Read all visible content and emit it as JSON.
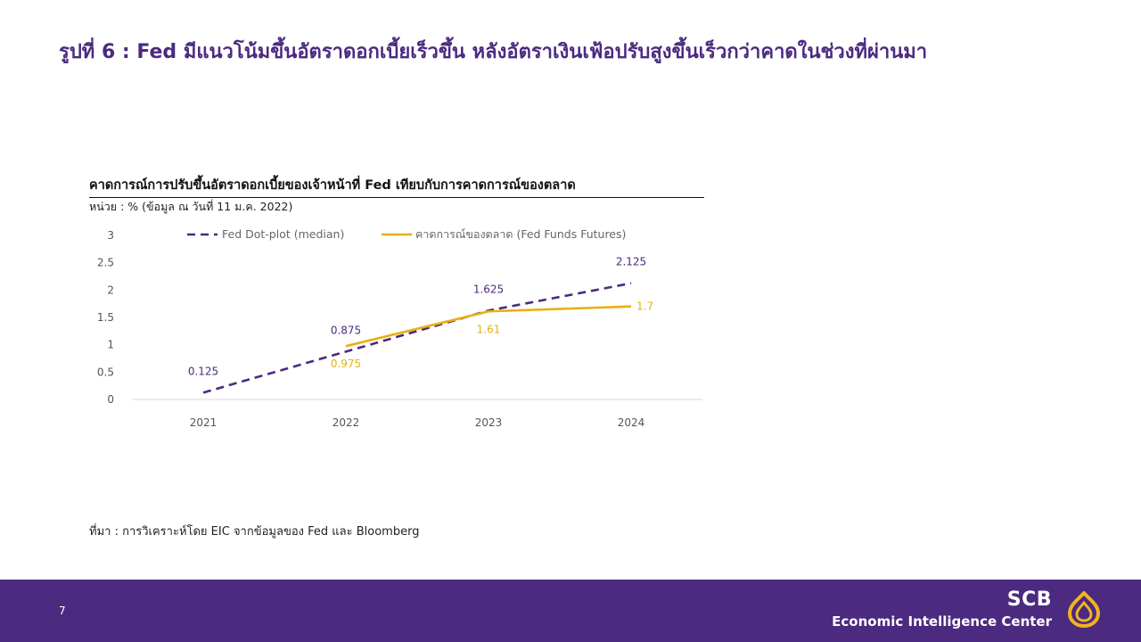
{
  "slide": {
    "title": "รูปที่ 6 : Fed มีแนวโน้มขึ้นอัตราดอกเบี้ยเร็วขึ้น หลังอัตราเงินเฟ้อปรับสูงขึ้นเร็วกว่าคาดในช่วงที่ผ่านมา",
    "source": "ที่มา : การวิเคราะห์โดย EIC จากข้อมูลของ Fed และ Bloomberg",
    "page_number": "7"
  },
  "brand": {
    "name": "SCB",
    "subtitle": "Economic Intelligence Center",
    "logo_icon": "scb-bell-logo-icon",
    "primary_color": "#4b2a80",
    "accent_color": "#f2b41c"
  },
  "chart_data": {
    "type": "line",
    "title": "คาดการณ์การปรับขึ้นอัตราดอกเบี้ยของเจ้าหน้าที่ Fed เทียบกับการคาดการณ์ของตลาด",
    "unit_note": "หน่วย : % (ข้อมูล ณ วันที่ 11 ม.ค. 2022)",
    "categories": [
      "2021",
      "2022",
      "2023",
      "2024"
    ],
    "y_ticks": [
      "0",
      "0.5",
      "1",
      "1.5",
      "2",
      "2.5",
      "3"
    ],
    "ylim": [
      0,
      3
    ],
    "legend_position": "top",
    "grid": false,
    "series": [
      {
        "name": "Fed Dot-plot (median)",
        "color": "#4b2a80",
        "style": "dashed",
        "x": [
          "2021",
          "2022",
          "2023",
          "2024"
        ],
        "values": [
          0.125,
          0.875,
          1.625,
          2.125
        ],
        "labels": [
          "0.125",
          "0.875",
          "1.625",
          "2.125"
        ],
        "label_position": "above"
      },
      {
        "name": "คาดการณ์ของตลาด (Fed Funds Futures)",
        "color": "#e8b00f",
        "style": "solid",
        "x": [
          "2022",
          "2023",
          "2024"
        ],
        "values": [
          0.975,
          1.61,
          1.7
        ],
        "labels": [
          "0.975",
          "1.61",
          "1.7"
        ],
        "label_position": "below"
      }
    ]
  }
}
